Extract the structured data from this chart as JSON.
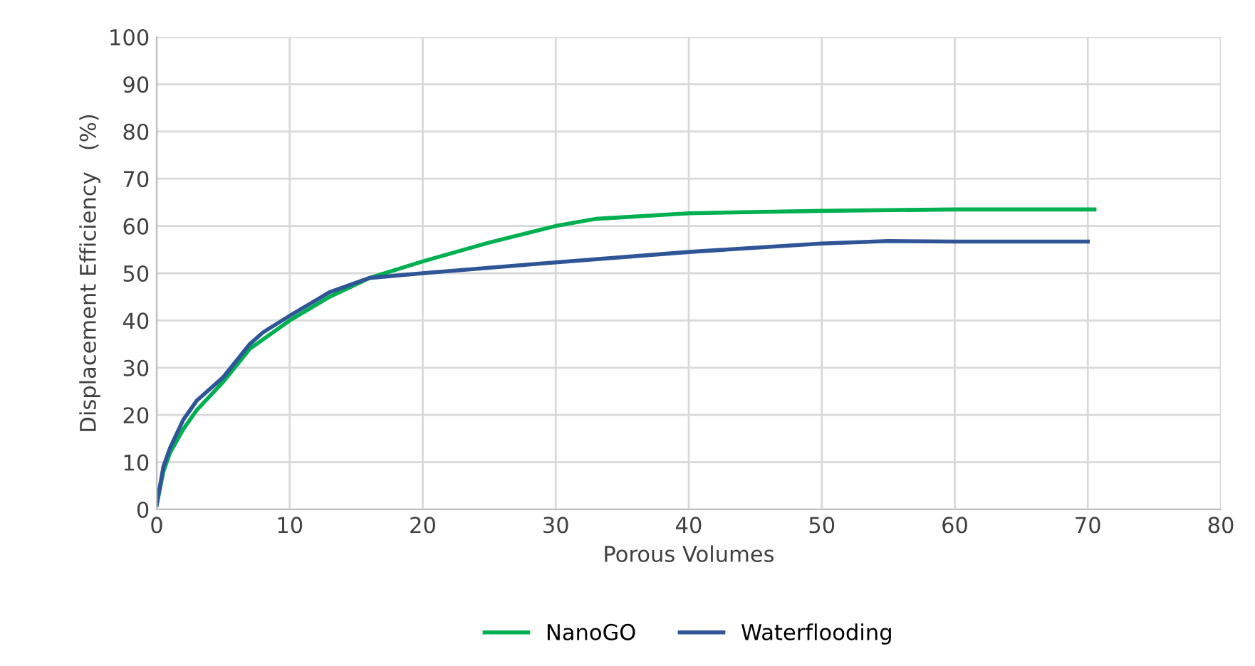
{
  "chart_data": {
    "type": "line",
    "xlabel": "Porous Volumes",
    "ylabel": "Displacement Efficiency   (%)",
    "xlim": [
      0,
      80
    ],
    "xticks": [
      0,
      10,
      20,
      30,
      40,
      50,
      60,
      70,
      80
    ],
    "ylim": [
      0,
      100
    ],
    "yticks": [
      0,
      10,
      20,
      30,
      40,
      50,
      60,
      70,
      80,
      90,
      100
    ],
    "grid": true,
    "legend": "bottom",
    "marker": "none",
    "line_style": "solid",
    "series": [
      {
        "name": "NanoGO",
        "color": "#00b050",
        "x": [
          0,
          0.5,
          1,
          2,
          3,
          5,
          7,
          8,
          10,
          13,
          16,
          20,
          25,
          30,
          33,
          40,
          50,
          60,
          70.5
        ],
        "values": [
          1,
          8,
          12,
          17,
          21,
          27,
          34,
          36,
          40,
          45,
          49,
          52.5,
          56.5,
          60,
          61.5,
          62.7,
          63.2,
          63.5,
          63.5
        ]
      },
      {
        "name": "Waterflooding",
        "color": "#2f5597",
        "x": [
          0,
          0.5,
          1,
          2,
          3,
          5,
          7,
          8,
          10,
          13,
          16,
          20,
          30,
          40,
          50,
          55,
          60,
          70
        ],
        "values": [
          1,
          9,
          13,
          19,
          23,
          28,
          35,
          37.5,
          41,
          46,
          49,
          50,
          52.3,
          54.5,
          56.3,
          56.8,
          56.7,
          56.7
        ]
      }
    ]
  }
}
